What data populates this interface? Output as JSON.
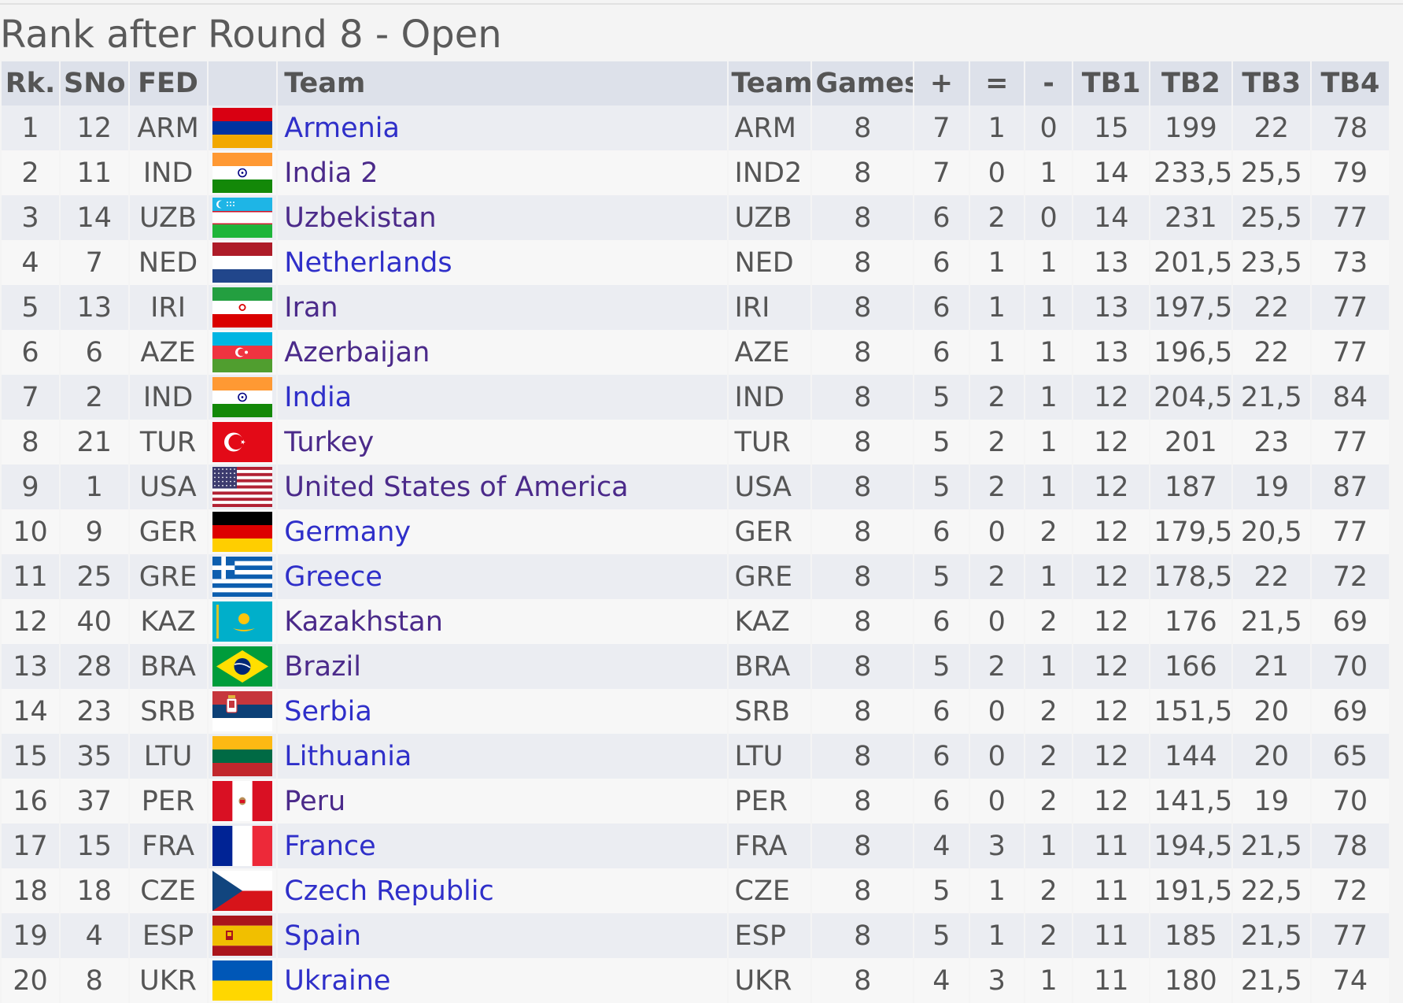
{
  "page": {
    "title": "Rank after Round 8 - Open"
  },
  "columns": [
    "Rk.",
    "SNo",
    "FED",
    "",
    "Team",
    "Team",
    "Games",
    "+",
    "=",
    "-",
    "TB1",
    "TB2",
    "TB3",
    "TB4"
  ],
  "rows": [
    {
      "rk": "1",
      "sno": "12",
      "fed": "ARM",
      "flag": "armenia-flag-icon",
      "team": "Armenia",
      "code": "ARM",
      "games": "8",
      "w": "7",
      "d": "1",
      "l": "0",
      "tb1": "15",
      "tb2": "199",
      "tb3": "22",
      "tb4": "78"
    },
    {
      "rk": "2",
      "sno": "11",
      "fed": "IND",
      "flag": "india-flag-icon",
      "team": "India 2",
      "code": "IND2",
      "games": "8",
      "w": "7",
      "d": "0",
      "l": "1",
      "tb1": "14",
      "tb2": "233,5",
      "tb3": "25,5",
      "tb4": "79"
    },
    {
      "rk": "3",
      "sno": "14",
      "fed": "UZB",
      "flag": "uzbekistan-flag-icon",
      "team": "Uzbekistan",
      "code": "UZB",
      "games": "8",
      "w": "6",
      "d": "2",
      "l": "0",
      "tb1": "14",
      "tb2": "231",
      "tb3": "25,5",
      "tb4": "77"
    },
    {
      "rk": "4",
      "sno": "7",
      "fed": "NED",
      "flag": "netherlands-flag-icon",
      "team": "Netherlands",
      "code": "NED",
      "games": "8",
      "w": "6",
      "d": "1",
      "l": "1",
      "tb1": "13",
      "tb2": "201,5",
      "tb3": "23,5",
      "tb4": "73"
    },
    {
      "rk": "5",
      "sno": "13",
      "fed": "IRI",
      "flag": "iran-flag-icon",
      "team": "Iran",
      "code": "IRI",
      "games": "8",
      "w": "6",
      "d": "1",
      "l": "1",
      "tb1": "13",
      "tb2": "197,5",
      "tb3": "22",
      "tb4": "77"
    },
    {
      "rk": "6",
      "sno": "6",
      "fed": "AZE",
      "flag": "azerbaijan-flag-icon",
      "team": "Azerbaijan",
      "code": "AZE",
      "games": "8",
      "w": "6",
      "d": "1",
      "l": "1",
      "tb1": "13",
      "tb2": "196,5",
      "tb3": "22",
      "tb4": "77"
    },
    {
      "rk": "7",
      "sno": "2",
      "fed": "IND",
      "flag": "india-flag-icon",
      "team": "India",
      "code": "IND",
      "games": "8",
      "w": "5",
      "d": "2",
      "l": "1",
      "tb1": "12",
      "tb2": "204,5",
      "tb3": "21,5",
      "tb4": "84"
    },
    {
      "rk": "8",
      "sno": "21",
      "fed": "TUR",
      "flag": "turkey-flag-icon",
      "team": "Turkey",
      "code": "TUR",
      "games": "8",
      "w": "5",
      "d": "2",
      "l": "1",
      "tb1": "12",
      "tb2": "201",
      "tb3": "23",
      "tb4": "77"
    },
    {
      "rk": "9",
      "sno": "1",
      "fed": "USA",
      "flag": "usa-flag-icon",
      "team": "United States of America",
      "code": "USA",
      "games": "8",
      "w": "5",
      "d": "2",
      "l": "1",
      "tb1": "12",
      "tb2": "187",
      "tb3": "19",
      "tb4": "87"
    },
    {
      "rk": "10",
      "sno": "9",
      "fed": "GER",
      "flag": "germany-flag-icon",
      "team": "Germany",
      "code": "GER",
      "games": "8",
      "w": "6",
      "d": "0",
      "l": "2",
      "tb1": "12",
      "tb2": "179,5",
      "tb3": "20,5",
      "tb4": "77"
    },
    {
      "rk": "11",
      "sno": "25",
      "fed": "GRE",
      "flag": "greece-flag-icon",
      "team": "Greece",
      "code": "GRE",
      "games": "8",
      "w": "5",
      "d": "2",
      "l": "1",
      "tb1": "12",
      "tb2": "178,5",
      "tb3": "22",
      "tb4": "72"
    },
    {
      "rk": "12",
      "sno": "40",
      "fed": "KAZ",
      "flag": "kazakhstan-flag-icon",
      "team": "Kazakhstan",
      "code": "KAZ",
      "games": "8",
      "w": "6",
      "d": "0",
      "l": "2",
      "tb1": "12",
      "tb2": "176",
      "tb3": "21,5",
      "tb4": "69"
    },
    {
      "rk": "13",
      "sno": "28",
      "fed": "BRA",
      "flag": "brazil-flag-icon",
      "team": "Brazil",
      "code": "BRA",
      "games": "8",
      "w": "5",
      "d": "2",
      "l": "1",
      "tb1": "12",
      "tb2": "166",
      "tb3": "21",
      "tb4": "70"
    },
    {
      "rk": "14",
      "sno": "23",
      "fed": "SRB",
      "flag": "serbia-flag-icon",
      "team": "Serbia",
      "code": "SRB",
      "games": "8",
      "w": "6",
      "d": "0",
      "l": "2",
      "tb1": "12",
      "tb2": "151,5",
      "tb3": "20",
      "tb4": "69"
    },
    {
      "rk": "15",
      "sno": "35",
      "fed": "LTU",
      "flag": "lithuania-flag-icon",
      "team": "Lithuania",
      "code": "LTU",
      "games": "8",
      "w": "6",
      "d": "0",
      "l": "2",
      "tb1": "12",
      "tb2": "144",
      "tb3": "20",
      "tb4": "65"
    },
    {
      "rk": "16",
      "sno": "37",
      "fed": "PER",
      "flag": "peru-flag-icon",
      "team": "Peru",
      "code": "PER",
      "games": "8",
      "w": "6",
      "d": "0",
      "l": "2",
      "tb1": "12",
      "tb2": "141,5",
      "tb3": "19",
      "tb4": "70"
    },
    {
      "rk": "17",
      "sno": "15",
      "fed": "FRA",
      "flag": "france-flag-icon",
      "team": "France",
      "code": "FRA",
      "games": "8",
      "w": "4",
      "d": "3",
      "l": "1",
      "tb1": "11",
      "tb2": "194,5",
      "tb3": "21,5",
      "tb4": "78"
    },
    {
      "rk": "18",
      "sno": "18",
      "fed": "CZE",
      "flag": "czech-flag-icon",
      "team": "Czech Republic",
      "code": "CZE",
      "games": "8",
      "w": "5",
      "d": "1",
      "l": "2",
      "tb1": "11",
      "tb2": "191,5",
      "tb3": "22,5",
      "tb4": "72"
    },
    {
      "rk": "19",
      "sno": "4",
      "fed": "ESP",
      "flag": "spain-flag-icon",
      "team": "Spain",
      "code": "ESP",
      "games": "8",
      "w": "5",
      "d": "1",
      "l": "2",
      "tb1": "11",
      "tb2": "185",
      "tb3": "21,5",
      "tb4": "77"
    },
    {
      "rk": "20",
      "sno": "8",
      "fed": "UKR",
      "flag": "ukraine-flag-icon",
      "team": "Ukraine",
      "code": "UKR",
      "games": "8",
      "w": "4",
      "d": "3",
      "l": "1",
      "tb1": "11",
      "tb2": "180",
      "tb3": "21,5",
      "tb4": "74"
    }
  ]
}
